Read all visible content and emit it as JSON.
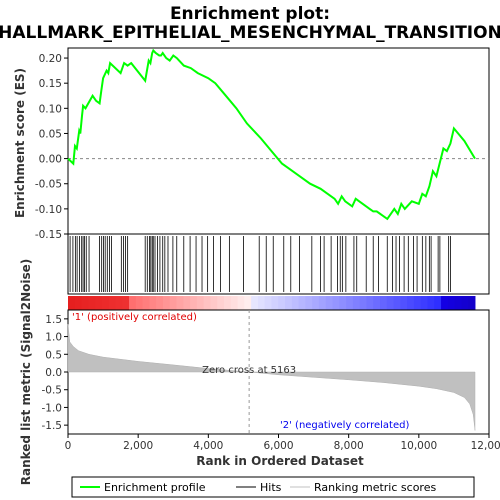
{
  "chart_data": {
    "type": "line",
    "title_line1": "Enrichment plot:",
    "title_line2": "HALLMARK_EPITHELIAL_MESENCHYMAL_TRANSITION",
    "top_panel": {
      "ylabel": "Enrichment score (ES)",
      "ylim": [
        -0.15,
        0.22
      ],
      "yticks": [
        "0.20",
        "0.15",
        "0.10",
        "0.05",
        "0.00",
        "-0.05",
        "-0.10",
        "-0.15"
      ],
      "ytick_values": [
        0.2,
        0.15,
        0.1,
        0.05,
        0.0,
        -0.05,
        -0.1,
        -0.15
      ],
      "series": [
        {
          "name": "Enrichment profile",
          "color": "#00ff00",
          "x": [
            0,
            150,
            200,
            250,
            320,
            350,
            400,
            430,
            500,
            700,
            800,
            900,
            950,
            1000,
            1100,
            1150,
            1200,
            1500,
            1600,
            1700,
            1800,
            2200,
            2300,
            2350,
            2400,
            2430,
            2500,
            2600,
            2650,
            2700,
            2800,
            2900,
            3000,
            3100,
            3300,
            3500,
            3700,
            4000,
            4200,
            4500,
            4800,
            5100,
            5500,
            5800,
            6100,
            6300,
            6600,
            6900,
            7200,
            7400,
            7600,
            7700,
            7800,
            7900,
            8100,
            8200,
            8300,
            8600,
            8700,
            8800,
            9000,
            9100,
            9200,
            9300,
            9400,
            9500,
            9600,
            9800,
            10000,
            10100,
            10200,
            10300,
            10400,
            10500,
            10700,
            10800,
            10900,
            11000,
            11300,
            11600
          ],
          "y": [
            0.0,
            -0.01,
            0.025,
            0.02,
            0.055,
            0.05,
            0.085,
            0.105,
            0.1,
            0.125,
            0.115,
            0.11,
            0.135,
            0.16,
            0.175,
            0.17,
            0.19,
            0.17,
            0.19,
            0.185,
            0.19,
            0.155,
            0.195,
            0.19,
            0.21,
            0.215,
            0.21,
            0.205,
            0.205,
            0.21,
            0.2,
            0.195,
            0.205,
            0.2,
            0.185,
            0.18,
            0.17,
            0.16,
            0.15,
            0.125,
            0.1,
            0.07,
            0.04,
            0.015,
            -0.01,
            -0.02,
            -0.035,
            -0.05,
            -0.06,
            -0.07,
            -0.08,
            -0.09,
            -0.075,
            -0.085,
            -0.095,
            -0.08,
            -0.085,
            -0.1,
            -0.105,
            -0.105,
            -0.115,
            -0.12,
            -0.11,
            -0.1,
            -0.11,
            -0.09,
            -0.1,
            -0.085,
            -0.09,
            -0.07,
            -0.075,
            -0.055,
            -0.025,
            -0.035,
            0.02,
            0.015,
            0.03,
            0.06,
            0.035,
            0.0
          ]
        }
      ],
      "hits": [
        60,
        140,
        210,
        260,
        330,
        390,
        430,
        470,
        520,
        600,
        900,
        960,
        1010,
        1060,
        1120,
        1180,
        1240,
        1520,
        1580,
        1640,
        1700,
        2200,
        2260,
        2320,
        2360,
        2400,
        2430,
        2480,
        2550,
        2620,
        2700,
        2760,
        2850,
        2990,
        3100,
        3300,
        3480,
        3650,
        3820,
        3980,
        4150,
        4350,
        4600,
        5000,
        5450,
        5650,
        5850,
        6150,
        6350,
        6600,
        6950,
        7200,
        7300,
        7500,
        7680,
        7760,
        7820,
        7920,
        8150,
        8230,
        8500,
        8700,
        8850,
        9100,
        9250,
        9350,
        9450,
        9580,
        9700,
        9850,
        9950,
        10100,
        10200,
        10300,
        10350,
        10550,
        10600,
        10850,
        10900
      ]
    },
    "bottom_panel": {
      "ylabel": "Ranked list metric (Signal2Noise)",
      "xlabel": "Rank in Ordered Dataset",
      "ylim": [
        -1.75,
        1.75
      ],
      "yticks": [
        "1.5",
        "1.0",
        "0.5",
        "0.0",
        "-0.5",
        "-1.0",
        "-1.5"
      ],
      "ytick_values": [
        1.5,
        1.0,
        0.5,
        0.0,
        -0.5,
        -1.0,
        -1.5
      ],
      "xlim": [
        0,
        12000
      ],
      "xticks": [
        "0",
        "2,000",
        "4,000",
        "6,000",
        "8,000",
        "10,000",
        "12,000"
      ],
      "xtick_values": [
        0,
        2000,
        4000,
        6000,
        8000,
        10000,
        12000
      ],
      "metric_x": [
        0,
        50,
        150,
        300,
        600,
        1000,
        2000,
        3000,
        4000,
        5163,
        6000,
        7000,
        8000,
        9000,
        10000,
        10500,
        11000,
        11300,
        11450,
        11550,
        11600
      ],
      "metric_y": [
        1.35,
        0.85,
        0.72,
        0.6,
        0.5,
        0.42,
        0.3,
        0.2,
        0.1,
        0.0,
        -0.08,
        -0.15,
        -0.22,
        -0.3,
        -0.4,
        -0.47,
        -0.58,
        -0.72,
        -0.9,
        -1.2,
        -1.65
      ],
      "zero_cross_label": "Zero cross at 5163",
      "zero_cross_rank": 5163,
      "positive_label": "'1' (positively correlated)",
      "negative_label": "'2' (negatively correlated)"
    },
    "total_genes": 11600,
    "legend": [
      {
        "label": "Enrichment profile",
        "color": "#00ff00"
      },
      {
        "label": "Hits",
        "color": "#000000"
      },
      {
        "label": "Ranking metric scores",
        "color": "#c0c0c0"
      }
    ]
  }
}
